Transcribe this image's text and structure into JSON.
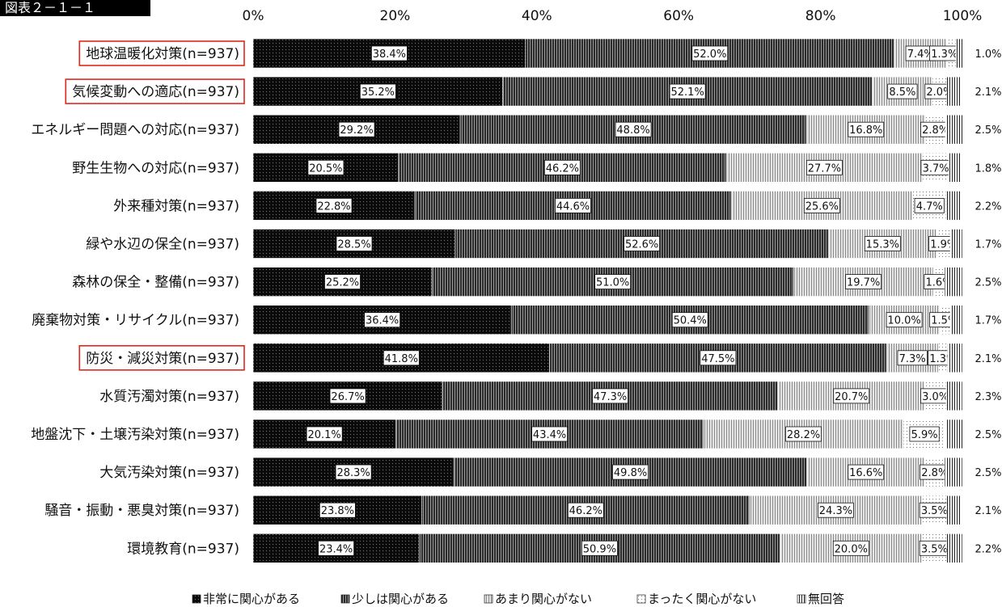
{
  "figure_label": "図表２－１－１",
  "chart_data": {
    "type": "bar",
    "orientation": "horizontal",
    "stacked": true,
    "x_range": [
      0,
      100
    ],
    "x_ticks": [
      "0%",
      "20%",
      "40%",
      "60%",
      "80%",
      "100%"
    ],
    "grid": false,
    "legend_position": "bottom",
    "highlighted_categories": [
      "地球温暖化対策(n=937)",
      "気候変動への適応(n=937)",
      "防災・減災対策(n=937)"
    ],
    "categories": [
      "地球温暖化対策(n=937)",
      "気候変動への適応(n=937)",
      "エネルギー問題への対応(n=937)",
      "野生生物への対応(n=937)",
      "外来種対策(n=937)",
      "緑や水辺の保全(n=937)",
      "森林の保全・整備(n=937)",
      "廃棄物対策・リサイクル(n=937)",
      "防災・減災対策(n=937)",
      "水質汚濁対策(n=937)",
      "地盤沈下・土壌汚染対策(n=937)",
      "大気汚染対策(n=937)",
      "騒音・振動・悪臭対策(n=937)",
      "環境教育(n=937)"
    ],
    "series": [
      {
        "name": "非常に関心がある",
        "pattern": "black",
        "values": [
          38.4,
          35.2,
          29.2,
          20.5,
          22.8,
          28.5,
          25.2,
          36.4,
          41.8,
          26.7,
          20.1,
          28.3,
          23.8,
          23.4
        ]
      },
      {
        "name": "少しは関心がある",
        "pattern": "dense-stripe",
        "values": [
          52.0,
          52.1,
          48.8,
          46.2,
          44.6,
          52.6,
          51.0,
          50.4,
          47.5,
          47.3,
          43.4,
          49.8,
          46.2,
          50.9
        ]
      },
      {
        "name": "あまり関心がない",
        "pattern": "light-stripe",
        "values": [
          7.4,
          8.5,
          16.8,
          27.7,
          25.6,
          15.3,
          19.7,
          10.0,
          7.3,
          20.7,
          28.2,
          16.6,
          24.3,
          20.0
        ]
      },
      {
        "name": "まったく関心がない",
        "pattern": "dots",
        "values": [
          1.3,
          2.0,
          2.8,
          3.7,
          4.7,
          1.9,
          1.6,
          1.5,
          1.3,
          3.0,
          5.9,
          2.8,
          3.5,
          3.5
        ]
      },
      {
        "name": "無回答",
        "pattern": "vertical-stripe",
        "values": [
          1.0,
          2.1,
          2.5,
          1.8,
          2.2,
          1.7,
          2.5,
          1.7,
          2.1,
          2.3,
          2.5,
          2.5,
          2.1,
          2.2
        ]
      }
    ],
    "last_series_label_position": "outside-right",
    "colors": {
      "text": "#111111",
      "highlight_border": "#e0281e"
    }
  }
}
